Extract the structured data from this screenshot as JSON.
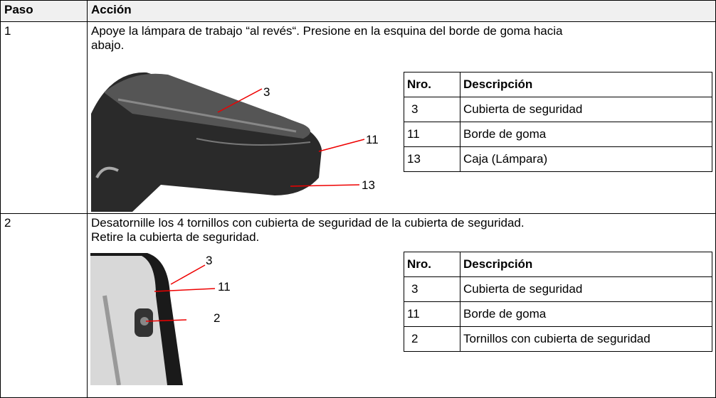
{
  "table": {
    "headers": [
      "Paso",
      "Acción"
    ],
    "rows": [
      {
        "step": "1",
        "lines": [
          "Apoye la lámpara de trabajo “al revés“. Presione en la esquina del borde de goma hacia",
          "abajo."
        ],
        "callouts": [
          "3",
          "11",
          "13"
        ],
        "legend": {
          "headers": [
            "Nro.",
            "Descripción"
          ],
          "rows": [
            [
              "3",
              "Cubierta de seguridad"
            ],
            [
              "11",
              "Borde de goma"
            ],
            [
              "13",
              "Caja (Lámpara)"
            ]
          ]
        }
      },
      {
        "step": "2",
        "lines": [
          "Desatornille los 4 tornillos con cubierta de seguridad de la cubierta de seguridad.",
          "Retire la cubierta de seguridad."
        ],
        "callouts": [
          "3",
          "11",
          "2"
        ],
        "legend": {
          "headers": [
            "Nro.",
            "Descripción"
          ],
          "rows": [
            [
              "3",
              "Cubierta de seguridad"
            ],
            [
              "11",
              "Borde de goma"
            ],
            [
              "2",
              "Tornillos con cubierta de seguridad"
            ]
          ]
        }
      }
    ]
  }
}
